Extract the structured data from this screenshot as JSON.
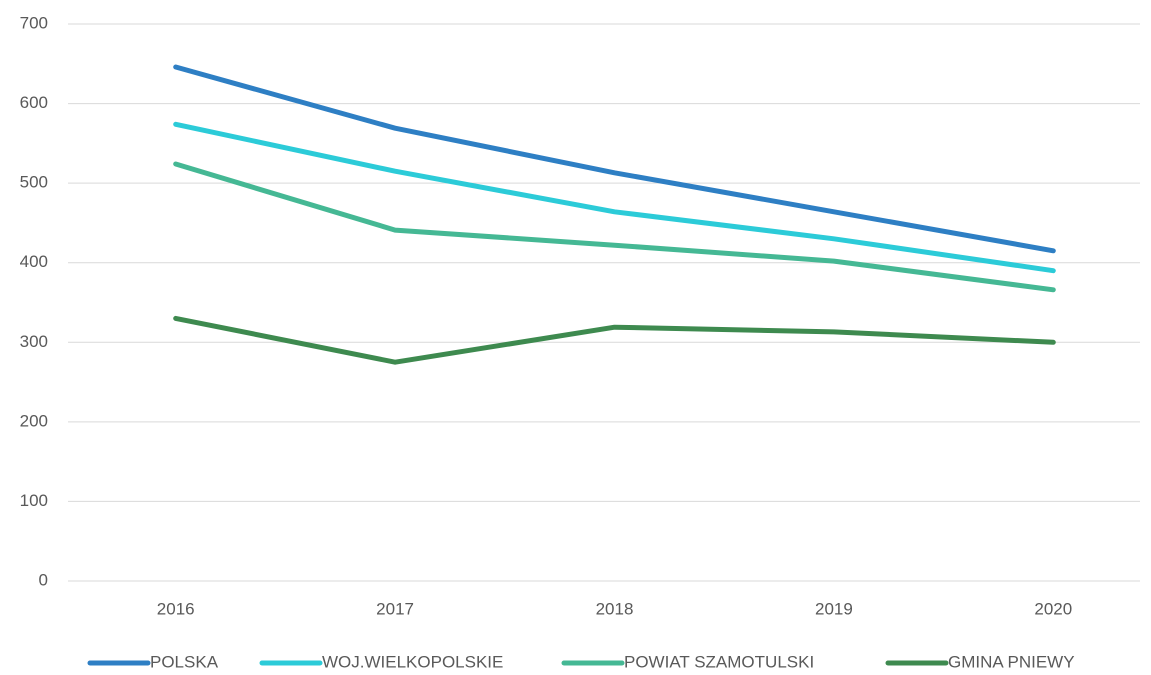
{
  "chart_data": {
    "type": "line",
    "categories": [
      "2016",
      "2017",
      "2018",
      "2019",
      "2020"
    ],
    "series": [
      {
        "name": "POLSKA",
        "color": "#2e7fc4",
        "values": [
          646,
          569,
          513,
          464,
          415
        ]
      },
      {
        "name": "WOJ.WIELKOPOLSKIE",
        "color": "#2ccbd8",
        "values": [
          574,
          515,
          464,
          430,
          390
        ]
      },
      {
        "name": "POWIAT SZAMOTULSKI",
        "color": "#45b894",
        "values": [
          524,
          441,
          422,
          402,
          366
        ]
      },
      {
        "name": "GMINA PNIEWY",
        "color": "#3e8a4f",
        "values": [
          330,
          275,
          319,
          313,
          300
        ]
      }
    ],
    "ylim": [
      0,
      700
    ],
    "yticks": [
      0,
      100,
      200,
      300,
      400,
      500,
      600,
      700
    ],
    "grid": true,
    "legend": "bottom"
  }
}
